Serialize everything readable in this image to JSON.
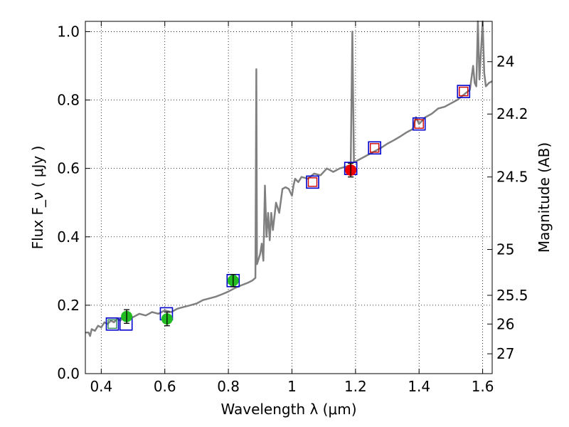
{
  "chart_data": {
    "type": "scatter",
    "title": "",
    "xlabel": "Wavelength  λ (μm)",
    "ylabel": "Flux  F_ν  ( μJy )",
    "ylabel_right": "Magnitude (AB)",
    "xlim": [
      0.35,
      1.63
    ],
    "ylim": [
      0.0,
      1.03
    ],
    "grid": true,
    "x_ticks": [
      0.4,
      0.6,
      0.8,
      1.0,
      1.2,
      1.4,
      1.6
    ],
    "x_tick_labels": [
      "0.4",
      "0.6",
      "0.8",
      "1",
      "1.2",
      "1.4",
      "1.6"
    ],
    "y_ticks": [
      0.0,
      0.2,
      0.4,
      0.6,
      0.8,
      1.0
    ],
    "y_tick_labels": [
      "0.0",
      "0.2",
      "0.4",
      "0.6",
      "0.8",
      "1.0"
    ],
    "right_ticks": [
      {
        "label": "24",
        "flux": 0.912
      },
      {
        "label": "24.2",
        "flux": 0.759
      },
      {
        "label": "24.5",
        "flux": 0.575
      },
      {
        "label": "25",
        "flux": 0.363
      },
      {
        "label": "25.5",
        "flux": 0.229
      },
      {
        "label": "26",
        "flux": 0.145
      },
      {
        "label": "27",
        "flux": 0.058
      }
    ],
    "series": [
      {
        "marker": "line",
        "color": "#808080",
        "points": [
          [
            0.35,
            0.12
          ],
          [
            0.36,
            0.12
          ],
          [
            0.365,
            0.11
          ],
          [
            0.37,
            0.13
          ],
          [
            0.38,
            0.125
          ],
          [
            0.39,
            0.14
          ],
          [
            0.4,
            0.135
          ],
          [
            0.41,
            0.15
          ],
          [
            0.42,
            0.145
          ],
          [
            0.43,
            0.155
          ],
          [
            0.44,
            0.15
          ],
          [
            0.45,
            0.16
          ],
          [
            0.46,
            0.155
          ],
          [
            0.47,
            0.165
          ],
          [
            0.48,
            0.16
          ],
          [
            0.49,
            0.17
          ],
          [
            0.5,
            0.165
          ],
          [
            0.52,
            0.175
          ],
          [
            0.54,
            0.17
          ],
          [
            0.56,
            0.18
          ],
          [
            0.58,
            0.175
          ],
          [
            0.6,
            0.185
          ],
          [
            0.62,
            0.18
          ],
          [
            0.64,
            0.19
          ],
          [
            0.66,
            0.195
          ],
          [
            0.68,
            0.2
          ],
          [
            0.7,
            0.205
          ],
          [
            0.72,
            0.215
          ],
          [
            0.74,
            0.22
          ],
          [
            0.76,
            0.225
          ],
          [
            0.78,
            0.232
          ],
          [
            0.8,
            0.24
          ],
          [
            0.82,
            0.25
          ],
          [
            0.84,
            0.258
          ],
          [
            0.86,
            0.265
          ],
          [
            0.875,
            0.272
          ],
          [
            0.885,
            0.28
          ],
          [
            0.888,
            0.89
          ],
          [
            0.89,
            0.32
          ],
          [
            0.9,
            0.35
          ],
          [
            0.905,
            0.38
          ],
          [
            0.91,
            0.33
          ],
          [
            0.915,
            0.55
          ],
          [
            0.92,
            0.4
          ],
          [
            0.925,
            0.47
          ],
          [
            0.93,
            0.39
          ],
          [
            0.935,
            0.47
          ],
          [
            0.94,
            0.42
          ],
          [
            0.95,
            0.5
          ],
          [
            0.96,
            0.47
          ],
          [
            0.97,
            0.54
          ],
          [
            0.98,
            0.545
          ],
          [
            0.99,
            0.54
          ],
          [
            1.0,
            0.52
          ],
          [
            1.005,
            0.55
          ],
          [
            1.01,
            0.57
          ],
          [
            1.02,
            0.56
          ],
          [
            1.03,
            0.575
          ],
          [
            1.05,
            0.57
          ],
          [
            1.07,
            0.585
          ],
          [
            1.09,
            0.58
          ],
          [
            1.11,
            0.6
          ],
          [
            1.13,
            0.59
          ],
          [
            1.15,
            0.6
          ],
          [
            1.17,
            0.605
          ],
          [
            1.185,
            0.61
          ],
          [
            1.19,
            1.0
          ],
          [
            1.195,
            0.62
          ],
          [
            1.2,
            0.62
          ],
          [
            1.22,
            0.63
          ],
          [
            1.24,
            0.64
          ],
          [
            1.26,
            0.65
          ],
          [
            1.28,
            0.66
          ],
          [
            1.3,
            0.672
          ],
          [
            1.32,
            0.682
          ],
          [
            1.34,
            0.693
          ],
          [
            1.36,
            0.705
          ],
          [
            1.38,
            0.715
          ],
          [
            1.39,
            0.75
          ],
          [
            1.4,
            0.73
          ],
          [
            1.42,
            0.75
          ],
          [
            1.44,
            0.76
          ],
          [
            1.46,
            0.775
          ],
          [
            1.48,
            0.78
          ],
          [
            1.5,
            0.79
          ],
          [
            1.52,
            0.8
          ],
          [
            1.54,
            0.815
          ],
          [
            1.56,
            0.83
          ],
          [
            1.57,
            0.9
          ],
          [
            1.575,
            0.85
          ],
          [
            1.58,
            0.84
          ],
          [
            1.585,
            1.05
          ],
          [
            1.59,
            0.86
          ],
          [
            1.6,
            1.05
          ],
          [
            1.605,
            0.88
          ],
          [
            1.61,
            0.84
          ],
          [
            1.62,
            0.85
          ],
          [
            1.63,
            0.855
          ]
        ]
      },
      {
        "marker": "square",
        "color": "#0000cc",
        "points": [
          [
            0.435,
            0.145
          ],
          [
            0.478,
            0.145
          ],
          [
            0.605,
            0.175
          ],
          [
            0.815,
            0.272
          ],
          [
            1.065,
            0.56
          ],
          [
            1.185,
            0.6
          ],
          [
            1.26,
            0.66
          ],
          [
            1.4,
            0.73
          ],
          [
            1.54,
            0.825
          ]
        ]
      },
      {
        "marker": "square-small",
        "color": "#2e8b57",
        "points": [
          [
            0.435,
            0.145
          ]
        ]
      },
      {
        "marker": "square-small",
        "color": "#cc0000",
        "points": [
          [
            1.065,
            0.56
          ],
          [
            1.26,
            0.66
          ],
          [
            1.4,
            0.73
          ],
          [
            1.54,
            0.825
          ]
        ]
      },
      {
        "marker": "circle-errorbar",
        "color": "#22bb22",
        "points": [
          [
            0.48,
            0.167,
            0.02
          ],
          [
            0.607,
            0.16,
            0.02
          ],
          [
            0.815,
            0.272,
            0.018
          ]
        ]
      },
      {
        "marker": "circle-errorbar",
        "color": "#ee0000",
        "points": [
          [
            1.185,
            0.595,
            0.02
          ]
        ]
      }
    ]
  }
}
